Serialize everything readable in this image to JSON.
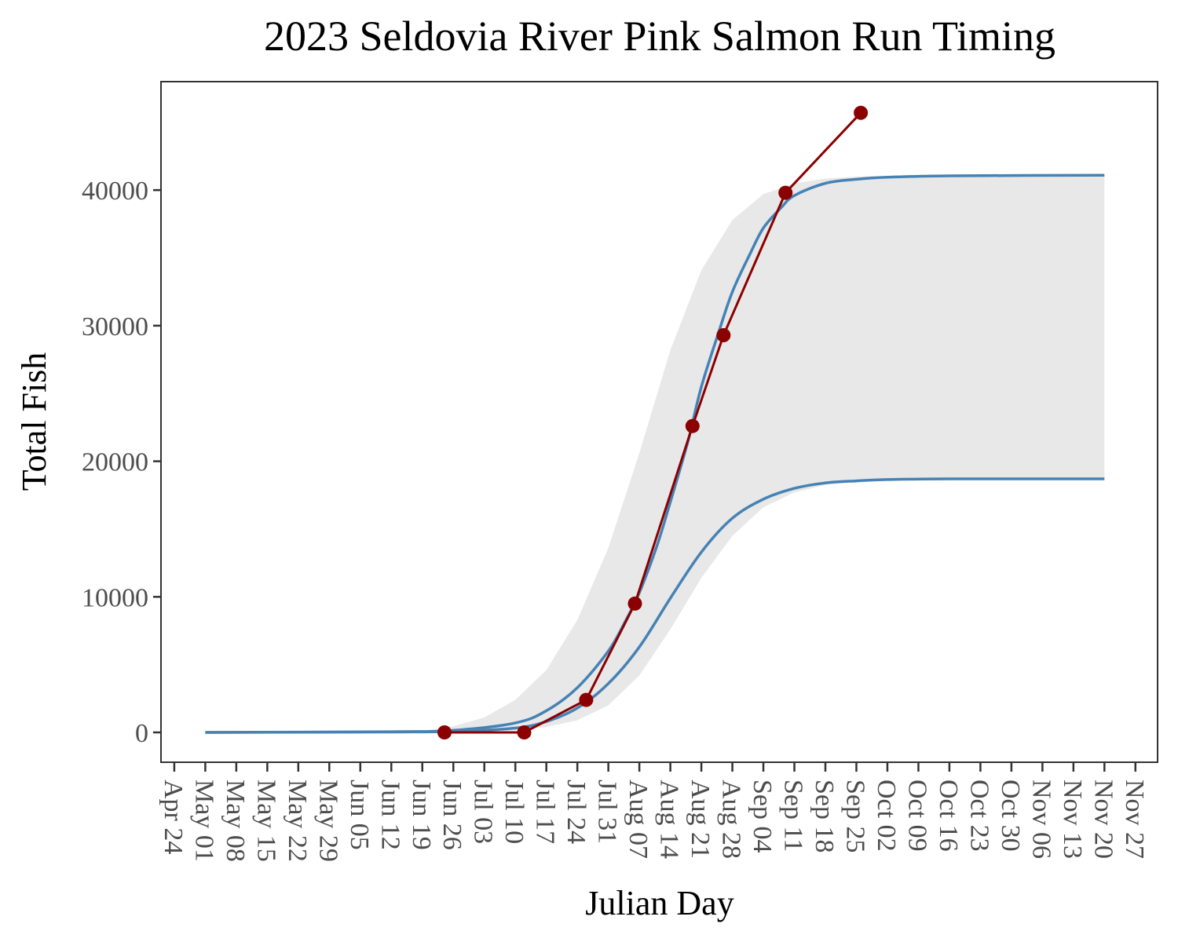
{
  "chart_data": {
    "type": "line",
    "title": "2023 Seldovia River Pink Salmon Run Timing",
    "xlabel": "Julian Day",
    "ylabel": "Total Fish",
    "x_ticks": [
      "Apr 24",
      "May 01",
      "May 08",
      "May 15",
      "May 22",
      "May 29",
      "Jun 05",
      "Jun 12",
      "Jun 19",
      "Jun 26",
      "Jul 03",
      "Jul 10",
      "Jul 17",
      "Jul 24",
      "Jul 31",
      "Aug 07",
      "Aug 14",
      "Aug 21",
      "Aug 28",
      "Sep 04",
      "Sep 11",
      "Sep 18",
      "Sep 25",
      "Oct 02",
      "Oct 09",
      "Oct 16",
      "Oct 23",
      "Oct 30",
      "Nov 06",
      "Nov 13",
      "Nov 20",
      "Nov 27"
    ],
    "x_range": [
      "Apr 21",
      "Dec 02"
    ],
    "y_ticks": [
      0,
      10000,
      20000,
      30000,
      40000
    ],
    "ylim": [
      -2200,
      48000
    ],
    "grid": false,
    "colors": {
      "observed": "#8b0000",
      "curves": "#4682b4",
      "band": "#e8e8e8",
      "panel_border": "#333333"
    },
    "series": [
      {
        "role": "observed",
        "x": [
          "Jun 24",
          "Jul 12",
          "Jul 26",
          "Aug 06",
          "Aug 19",
          "Aug 26",
          "Sep 09",
          "Sep 26"
        ],
        "values": [
          0,
          0,
          2400,
          9500,
          22600,
          29300,
          39800,
          45700
        ]
      },
      {
        "role": "upper-curve",
        "x": [
          "May 01",
          "Jun 12",
          "Jun 26",
          "Jul 10",
          "Jul 17",
          "Jul 24",
          "Jul 31",
          "Aug 04",
          "Aug 07",
          "Aug 11",
          "Aug 14",
          "Aug 18",
          "Aug 21",
          "Aug 25",
          "Aug 28",
          "Sep 01",
          "Sep 04",
          "Sep 08",
          "Sep 11",
          "Sep 18",
          "Sep 25",
          "Oct 02",
          "Oct 16",
          "Nov 20"
        ],
        "values": [
          0,
          50,
          150,
          700,
          1600,
          3300,
          6000,
          8300,
          10300,
          13800,
          17000,
          21500,
          25500,
          29600,
          32500,
          35300,
          37200,
          38700,
          39600,
          40500,
          40800,
          40950,
          41050,
          41100
        ]
      },
      {
        "role": "lower-curve",
        "x": [
          "May 01",
          "Jun 12",
          "Jun 26",
          "Jul 10",
          "Jul 17",
          "Jul 24",
          "Jul 31",
          "Aug 07",
          "Aug 14",
          "Aug 21",
          "Aug 28",
          "Sep 04",
          "Sep 11",
          "Sep 18",
          "Sep 25",
          "Oct 02",
          "Oct 16",
          "Nov 20"
        ],
        "values": [
          0,
          30,
          80,
          320,
          800,
          1800,
          3600,
          6300,
          9900,
          13300,
          15800,
          17200,
          18000,
          18400,
          18550,
          18650,
          18700,
          18700
        ]
      },
      {
        "role": "band-upper",
        "x": [
          "Jun 19",
          "Jun 26",
          "Jul 03",
          "Jul 10",
          "Jul 17",
          "Jul 24",
          "Jul 31",
          "Aug 07",
          "Aug 14",
          "Aug 21",
          "Aug 28",
          "Sep 04",
          "Sep 11",
          "Sep 18",
          "Sep 25",
          "Oct 02",
          "Oct 16",
          "Nov 20"
        ],
        "values": [
          100,
          450,
          1100,
          2400,
          4600,
          8300,
          13600,
          20600,
          28200,
          34100,
          37800,
          39700,
          40500,
          40850,
          41000,
          41050,
          41100,
          41100
        ]
      },
      {
        "role": "band-lower",
        "x": [
          "Jun 19",
          "Jun 26",
          "Jul 03",
          "Jul 10",
          "Jul 17",
          "Jul 24",
          "Jul 31",
          "Aug 07",
          "Aug 14",
          "Aug 21",
          "Aug 28",
          "Sep 04",
          "Sep 11",
          "Sep 18",
          "Sep 25",
          "Oct 02",
          "Oct 16",
          "Nov 20"
        ],
        "values": [
          0,
          20,
          60,
          160,
          400,
          900,
          2000,
          4200,
          7600,
          11400,
          14500,
          16600,
          17700,
          18250,
          18500,
          18600,
          18650,
          18700
        ]
      }
    ]
  }
}
